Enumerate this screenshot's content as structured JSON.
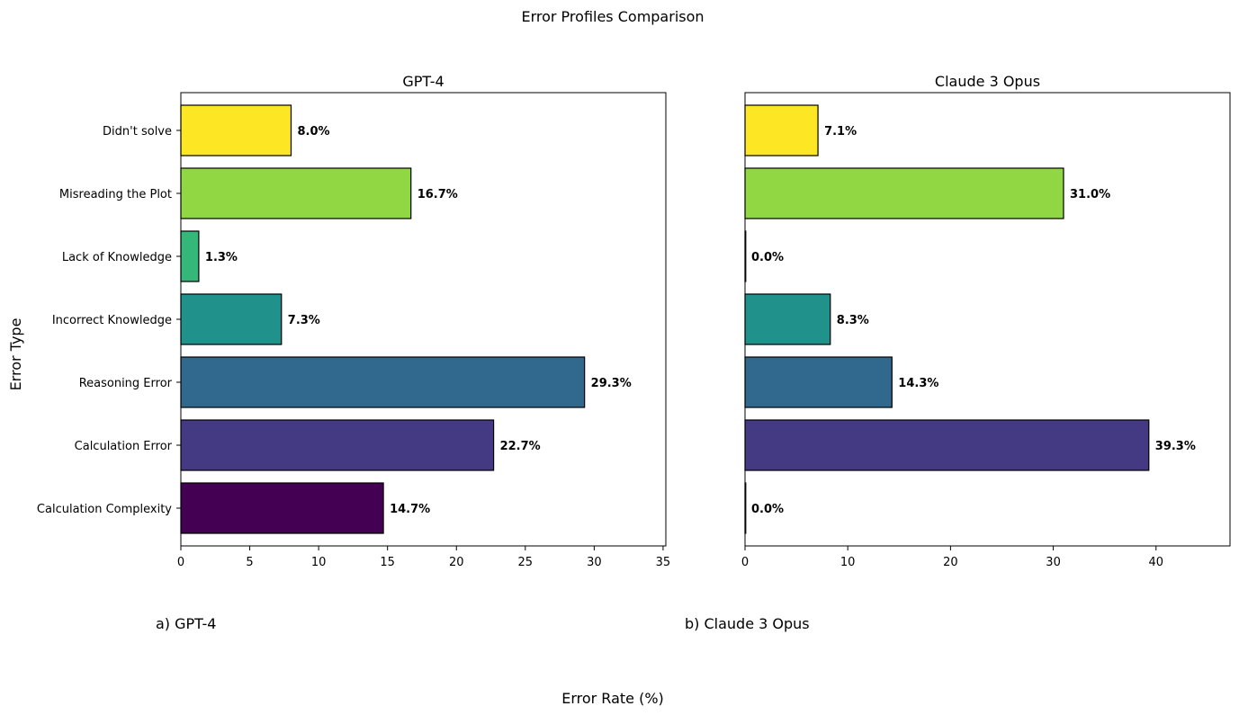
{
  "figure": {
    "title": "Error Profiles Comparison",
    "ylabel": "Error Type",
    "xlabel": "Error Rate (%)",
    "captions": [
      "a) GPT-4",
      "b) Claude 3 Opus"
    ]
  },
  "chart_data": [
    {
      "type": "bar",
      "orientation": "horizontal",
      "title": "GPT-4",
      "categories": [
        "Calculation Complexity",
        "Calculation Error",
        "Reasoning Error",
        "Incorrect Knowledge",
        "Lack of Knowledge",
        "Misreading the Plot",
        "Didn't solve"
      ],
      "values": [
        14.7,
        22.7,
        29.3,
        7.3,
        1.3,
        16.7,
        8.0
      ],
      "data_labels": [
        "14.7%",
        "22.7%",
        "29.3%",
        "7.3%",
        "1.3%",
        "16.7%",
        "8.0%"
      ],
      "colors": [
        "#440154",
        "#443983",
        "#31688e",
        "#21918c",
        "#35b779",
        "#90d743",
        "#fde725"
      ],
      "xlim": [
        0,
        35.2
      ],
      "xticks": [
        0,
        5,
        10,
        15,
        20,
        25,
        30,
        35
      ],
      "show_category_labels": true
    },
    {
      "type": "bar",
      "orientation": "horizontal",
      "title": "Claude 3 Opus",
      "categories": [
        "Calculation Complexity",
        "Calculation Error",
        "Reasoning Error",
        "Incorrect Knowledge",
        "Lack of Knowledge",
        "Misreading the Plot",
        "Didn't solve"
      ],
      "values": [
        0.0,
        39.3,
        14.3,
        8.3,
        0.0,
        31.0,
        7.1
      ],
      "data_labels": [
        "0.0%",
        "39.3%",
        "14.3%",
        "8.3%",
        "0.0%",
        "31.0%",
        "7.1%"
      ],
      "colors": [
        "#440154",
        "#443983",
        "#31688e",
        "#21918c",
        "#35b779",
        "#90d743",
        "#fde725"
      ],
      "xlim": [
        0,
        47.2
      ],
      "xticks": [
        0,
        10,
        20,
        30,
        40
      ],
      "show_category_labels": false
    }
  ]
}
